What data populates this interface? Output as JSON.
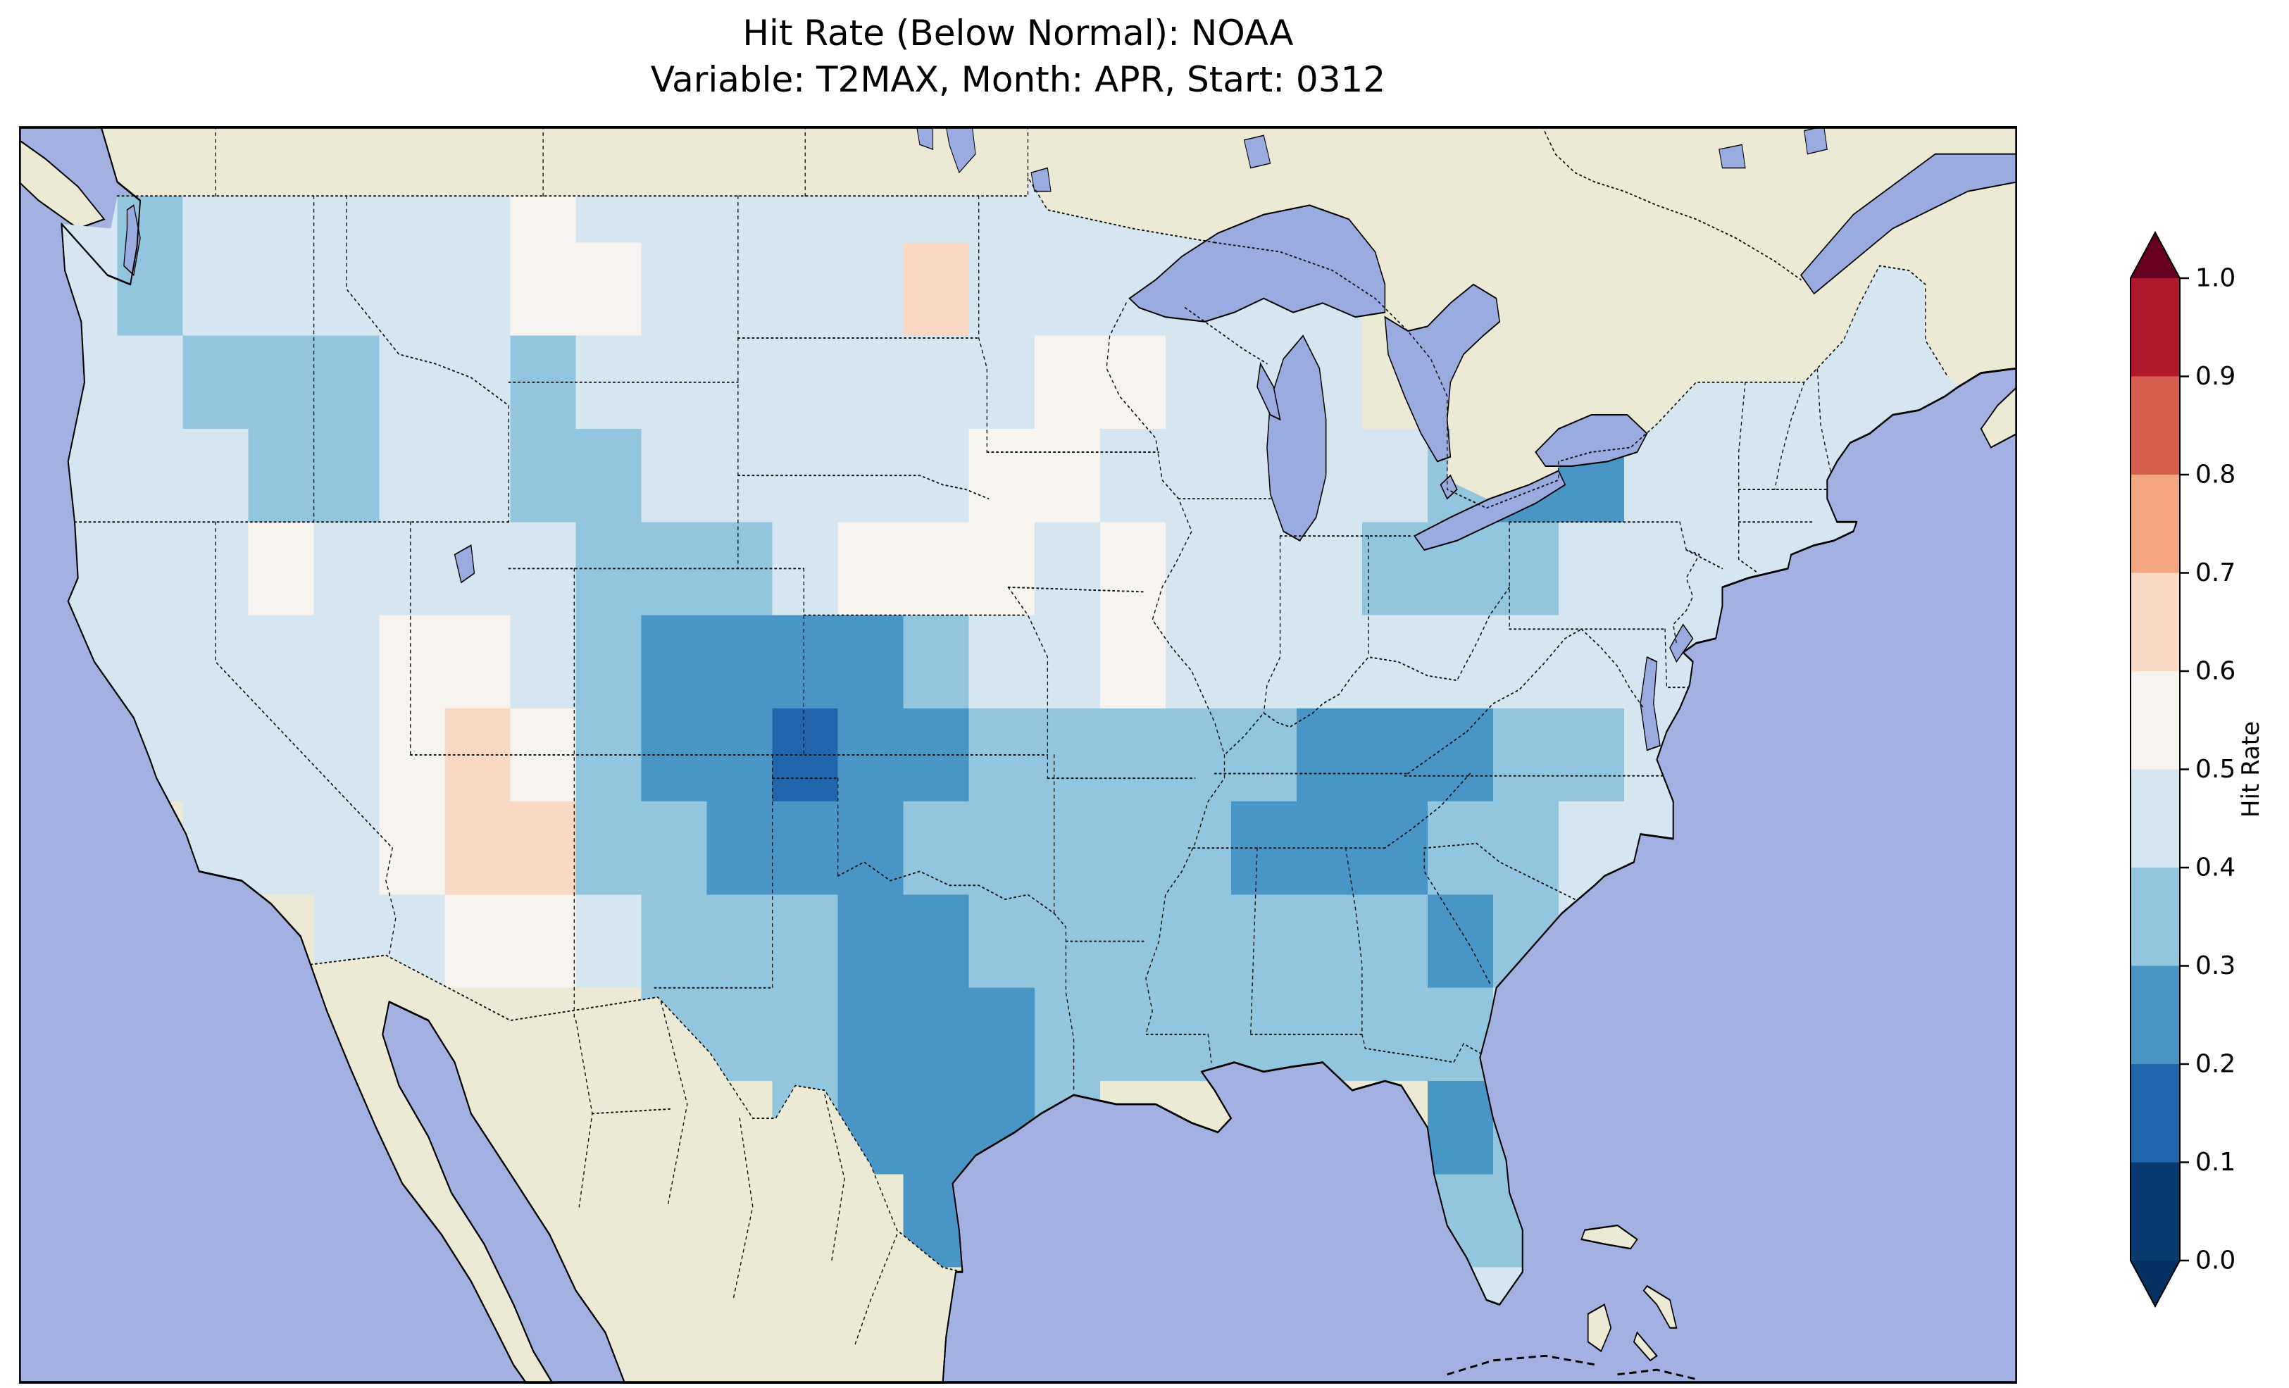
{
  "title": {
    "line1": "Hit Rate (Below Normal): NOAA",
    "line2": "Variable: T2MAX, Month: APR, Start: 0312"
  },
  "colorbar": {
    "label": "Hit Rate",
    "ticks": [
      "1.0",
      "0.9",
      "0.8",
      "0.7",
      "0.6",
      "0.5",
      "0.4",
      "0.3",
      "0.2",
      "0.1",
      "0.0"
    ],
    "bin_colors_low_to_high": [
      "#0a3b70",
      "#2166ac",
      "#4995c6",
      "#92c5de",
      "#d5e6f0",
      "#f7f3ef",
      "#f9d8c4",
      "#f4a582",
      "#d6604d",
      "#b2182b"
    ],
    "extend_low_color": "#053061",
    "extend_high_color": "#67001f"
  },
  "map_colors": {
    "ocean": "#a2b1e1",
    "land": "#ece9d5",
    "lake": "#9aabdf",
    "coast": "#000000",
    "border": "#111111",
    "frame": "#000000"
  },
  "chart_data": {
    "type": "heatmap",
    "title": "Hit Rate (Below Normal): NOAA",
    "subtitle": "Variable: T2MAX, Month: APR, Start: 0312",
    "metric": "Hit Rate (Below Normal)",
    "source": "NOAA",
    "variable": "T2MAX",
    "month": "APR",
    "start": "0312",
    "colorbar_label": "Hit Rate",
    "bin_edges": [
      0.0,
      0.1,
      0.2,
      0.3,
      0.4,
      0.5,
      0.6,
      0.7,
      0.8,
      0.9,
      1.0
    ],
    "colormap": "discrete red-blue; red = high hit rate, blue = low; arrow extensions both ends",
    "region": "Continental United States on lat/lon map with Canada and Mexico masked (no data)",
    "legend_position": "right",
    "grid": {
      "lon_west": -125,
      "lon_east": -65,
      "lat_north": 50,
      "lat_south": 24,
      "cell_deg": 2,
      "encoding": "Each string is one 2-deg latitude band (north to south); each char one 2-deg longitude cell (west to east). Digit d = hit rate in [d/10,(d+1)/10). '.' = no data (outside CONUS).",
      "rows_north_to_south": [
        "434444454444444444............",
        "43444445544446444444.......444",
        "44333443444444455444...4444444",
        "4443344334444455444443224444..",
        "4445444433345554544433344444..",
        "44444554322223445444444444....",
        ".444456532212233333222334.....",
        "..44456633222333332223344.....",
        "....44554333223333333234......",
        ".........33322233333334.......",
        "...........32223.....23.......",
        ".............2.......33.......",
        ".....................44......."
      ]
    }
  }
}
